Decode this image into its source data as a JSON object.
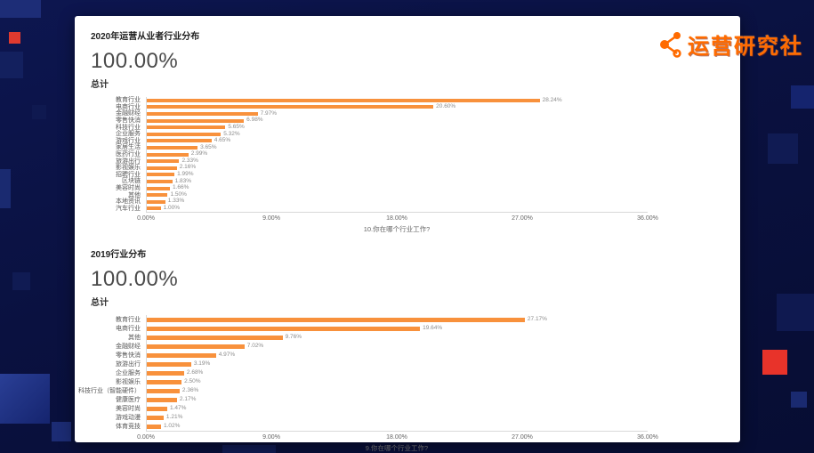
{
  "background": {
    "color": "#0a1140"
  },
  "logo": {
    "text": "运营研究社",
    "brand_color": "#ff6b00"
  },
  "chart_data": [
    {
      "type": "bar",
      "orientation": "horizontal",
      "title": "2020年运营从业者行业分布",
      "total": "100.00%",
      "total_label": "总计",
      "categories": [
        "教育行业",
        "电商行业",
        "金融财经",
        "零售快消",
        "科技行业",
        "企业服务",
        "游戏行业",
        "家居生活",
        "医药行业",
        "旅游出行",
        "影视娱乐",
        "招聘行业",
        "区块链",
        "美容时尚",
        "其他",
        "本地资讯",
        "汽车行业"
      ],
      "values": [
        28.24,
        20.6,
        7.97,
        6.98,
        5.65,
        5.32,
        4.65,
        3.65,
        2.99,
        2.33,
        2.16,
        1.99,
        1.83,
        1.66,
        1.5,
        1.33,
        1.0
      ],
      "xlabel": "10.你在哪个行业工作?",
      "x_ticks": [
        "0.00%",
        "9.00%",
        "18.00%",
        "27.00%",
        "36.00%"
      ],
      "xlim": [
        0,
        36
      ],
      "bar_color": "#f8913c",
      "grid": false,
      "legend": "none"
    },
    {
      "type": "bar",
      "orientation": "horizontal",
      "title": "2019行业分布",
      "total": "100.00%",
      "total_label": "总计",
      "categories": [
        "教育行业",
        "电商行业",
        "其他",
        "金融财经",
        "零售快消",
        "旅游出行",
        "企业服务",
        "影视娱乐",
        "科技行业（智能硬件）",
        "健康医疗",
        "美容时尚",
        "游戏动漫",
        "体育竞技"
      ],
      "values": [
        27.17,
        19.64,
        9.76,
        7.02,
        4.97,
        3.19,
        2.68,
        2.5,
        2.36,
        2.17,
        1.47,
        1.21,
        1.02
      ],
      "xlabel": "9.你在哪个行业工作?",
      "x_ticks": [
        "0.00%",
        "9.00%",
        "18.00%",
        "27.00%",
        "36.00%"
      ],
      "xlim": [
        0,
        36
      ],
      "bar_color": "#f8913c",
      "grid": false,
      "legend": "none"
    }
  ]
}
